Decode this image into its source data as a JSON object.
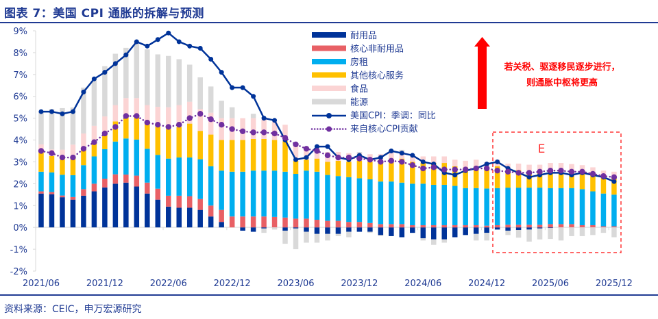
{
  "header": {
    "title": "图表 7：美国 CPI 通胀的拆解与预测"
  },
  "footer": {
    "source": "资料来源：CEIC，申万宏源研究"
  },
  "chart_data": {
    "type": "bar",
    "stacked": true,
    "title": "图表 7：美国 CPI 通胀的拆解与预测",
    "xlabel": "",
    "ylabel": "",
    "ylim": [
      -2,
      9
    ],
    "y_ticks": [
      "-2%",
      "-1%",
      "0%",
      "1%",
      "2%",
      "3%",
      "4%",
      "5%",
      "6%",
      "7%",
      "8%",
      "9%"
    ],
    "x_tick_labels": [
      "2021/06",
      "2021/12",
      "2022/06",
      "2022/12",
      "2023/06",
      "2023/12",
      "2024/06",
      "2024/12",
      "2025/06",
      "2025/12"
    ],
    "legend_position": "top-center",
    "categories": [
      "2021/06",
      "2021/07",
      "2021/08",
      "2021/09",
      "2021/10",
      "2021/11",
      "2021/12",
      "2022/01",
      "2022/02",
      "2022/03",
      "2022/04",
      "2022/05",
      "2022/06",
      "2022/07",
      "2022/08",
      "2022/09",
      "2022/10",
      "2022/11",
      "2022/12",
      "2023/01",
      "2023/02",
      "2023/03",
      "2023/04",
      "2023/05",
      "2023/06",
      "2023/07",
      "2023/08",
      "2023/09",
      "2023/10",
      "2023/11",
      "2023/12",
      "2024/01",
      "2024/02",
      "2024/03",
      "2024/04",
      "2024/05",
      "2024/06",
      "2024/07",
      "2024/08",
      "2024/09",
      "2024/10",
      "2024/11",
      "2024/12",
      "2025/01",
      "2025/02",
      "2025/03",
      "2025/04",
      "2025/05",
      "2025/06",
      "2025/07",
      "2025/08",
      "2025/09",
      "2025/10",
      "2025/11",
      "2025/12"
    ],
    "series": [
      {
        "name": "耐用品",
        "color": "#003399",
        "values": [
          1.55,
          1.52,
          1.38,
          1.27,
          1.45,
          1.65,
          1.83,
          2.0,
          2.05,
          1.87,
          1.55,
          1.27,
          0.95,
          0.9,
          0.9,
          0.8,
          0.5,
          0.25,
          0.0,
          -0.15,
          -0.2,
          -0.05,
          0.0,
          -0.15,
          -0.05,
          -0.2,
          -0.3,
          -0.3,
          -0.3,
          -0.2,
          -0.2,
          -0.2,
          -0.35,
          -0.4,
          -0.45,
          -0.25,
          -0.5,
          -0.55,
          -0.55,
          -0.45,
          -0.35,
          -0.3,
          -0.25,
          -0.1,
          -0.15,
          -0.12,
          -0.1,
          -0.05,
          -0.03,
          0.0,
          0.0,
          0.0,
          0.0,
          0.0,
          0.0
        ]
      },
      {
        "name": "核心非耐用品",
        "color": "#e86065",
        "values": [
          0.1,
          0.1,
          0.08,
          0.12,
          0.3,
          0.35,
          0.4,
          0.43,
          0.37,
          0.5,
          0.5,
          0.5,
          0.5,
          0.55,
          0.53,
          0.5,
          0.5,
          0.55,
          0.5,
          0.5,
          0.5,
          0.5,
          0.48,
          0.45,
          0.4,
          0.4,
          0.35,
          0.3,
          0.3,
          0.25,
          0.25,
          0.2,
          0.15,
          0.15,
          0.15,
          0.1,
          0.1,
          0.1,
          0.1,
          0.1,
          0.1,
          0.1,
          0.08,
          0.1,
          0.12,
          0.12,
          0.12,
          0.12,
          0.15,
          0.15,
          0.15,
          0.1,
          0.1,
          0.05,
          0.05
        ]
      },
      {
        "name": "房租",
        "color": "#00aeef",
        "values": [
          0.9,
          0.9,
          0.95,
          1.0,
          1.1,
          1.25,
          1.35,
          1.5,
          1.65,
          1.65,
          1.55,
          1.55,
          1.7,
          1.75,
          1.77,
          1.82,
          1.8,
          1.8,
          2.05,
          2.05,
          2.1,
          2.1,
          2.12,
          2.1,
          2.05,
          2.2,
          2.2,
          2.1,
          2.05,
          2.05,
          2.0,
          2.0,
          1.95,
          1.95,
          1.9,
          1.9,
          1.9,
          1.85,
          1.85,
          1.8,
          1.7,
          1.7,
          1.7,
          1.7,
          1.7,
          1.7,
          1.7,
          1.7,
          1.65,
          1.65,
          1.65,
          1.65,
          1.55,
          1.5,
          1.45
        ]
      },
      {
        "name": "其他核心服务",
        "color": "#ffc000",
        "values": [
          0.95,
          0.75,
          0.7,
          0.8,
          0.75,
          0.7,
          0.75,
          0.92,
          1.05,
          1.1,
          1.2,
          1.3,
          1.35,
          1.4,
          1.55,
          1.3,
          1.45,
          1.4,
          1.45,
          1.45,
          1.45,
          1.45,
          1.4,
          1.4,
          0.6,
          0.5,
          0.6,
          0.6,
          0.7,
          0.7,
          0.8,
          0.8,
          0.95,
          1.05,
          1.1,
          1.0,
          0.95,
          1.0,
          1.0,
          0.9,
          0.95,
          1.0,
          0.9,
          1.0,
          0.8,
          0.8,
          0.75,
          0.75,
          0.8,
          0.8,
          0.8,
          0.8,
          0.8,
          0.75,
          0.75
        ]
      },
      {
        "name": "食品",
        "color": "#fbd4d4",
        "values": [
          0.3,
          0.3,
          0.45,
          0.6,
          0.7,
          0.7,
          0.75,
          0.75,
          0.8,
          0.8,
          0.8,
          0.9,
          1.0,
          1.0,
          1.0,
          1.0,
          1.0,
          1.0,
          1.0,
          1.0,
          0.95,
          0.9,
          0.85,
          0.75,
          0.75,
          0.6,
          0.5,
          0.45,
          0.4,
          0.4,
          0.35,
          0.35,
          0.3,
          0.3,
          0.3,
          0.3,
          0.3,
          0.3,
          0.3,
          0.3,
          0.3,
          0.3,
          0.3,
          0.3,
          0.3,
          0.3,
          0.3,
          0.3,
          0.35,
          0.35,
          0.3,
          0.3,
          0.3,
          0.3,
          0.3
        ]
      },
      {
        "name": "能源",
        "color": "#d9d9d9",
        "values": [
          1.5,
          1.85,
          1.9,
          1.7,
          2.1,
          2.2,
          2.3,
          2.35,
          2.3,
          2.6,
          2.55,
          2.4,
          2.35,
          2.1,
          1.7,
          1.45,
          1.2,
          0.8,
          0.5,
          0.0,
          0.2,
          -0.2,
          -0.1,
          -0.6,
          -0.95,
          -0.5,
          -0.4,
          -0.3,
          -0.1,
          -0.25,
          0.05,
          -0.05,
          -0.05,
          0.1,
          0.1,
          0.0,
          -0.1,
          -0.25,
          -0.15,
          0.0,
          0.0,
          -0.3,
          -0.35,
          0.0,
          -0.2,
          -0.35,
          -0.55,
          -0.5,
          -0.5,
          -0.6,
          -0.4,
          -0.4,
          -0.35,
          -0.25,
          -0.45
        ]
      }
    ],
    "lines": [
      {
        "name": "美国CPI：季调：同比",
        "color": "#003399",
        "style": "solid",
        "values": [
          5.3,
          5.3,
          5.2,
          5.3,
          6.2,
          6.8,
          7.1,
          7.5,
          7.9,
          8.5,
          8.3,
          8.6,
          8.9,
          8.5,
          8.3,
          8.2,
          7.7,
          7.1,
          6.4,
          6.4,
          6.0,
          5.0,
          4.9,
          4.0,
          3.1,
          3.2,
          3.7,
          3.7,
          3.2,
          3.1,
          3.3,
          3.1,
          3.2,
          3.5,
          3.4,
          3.3,
          3.0,
          2.9,
          2.5,
          2.4,
          2.6,
          2.7,
          2.9,
          3.0,
          2.7,
          2.5,
          2.3,
          2.4,
          2.5,
          2.5,
          2.4,
          2.5,
          2.4,
          2.3,
          2.1
        ]
      },
      {
        "name": "来自核心CPI贡献",
        "color": "#7030a0",
        "style": "dotted",
        "values": [
          3.5,
          3.4,
          3.2,
          3.2,
          3.6,
          3.9,
          4.3,
          4.6,
          5.1,
          5.1,
          4.8,
          4.7,
          4.6,
          4.7,
          5.0,
          5.2,
          4.95,
          4.7,
          4.5,
          4.4,
          4.35,
          4.35,
          4.3,
          4.1,
          3.8,
          3.6,
          3.5,
          3.3,
          3.2,
          3.2,
          3.15,
          3.1,
          3.0,
          3.05,
          3.0,
          2.85,
          2.7,
          2.75,
          2.65,
          2.65,
          2.65,
          2.7,
          2.7,
          2.6,
          2.55,
          2.5,
          2.5,
          2.55,
          2.6,
          2.6,
          2.55,
          2.55,
          2.45,
          2.35,
          2.3
        ]
      }
    ],
    "annotations": [
      {
        "text": "若关税、驱逐移民逐步进行，",
        "color": "#ff0000"
      },
      {
        "text": "则通胀中枢将更高",
        "color": "#ff0000"
      },
      {
        "text": "E",
        "color": "#ff0000",
        "meaning": "estimate region 2025/01-2025/12"
      }
    ]
  }
}
